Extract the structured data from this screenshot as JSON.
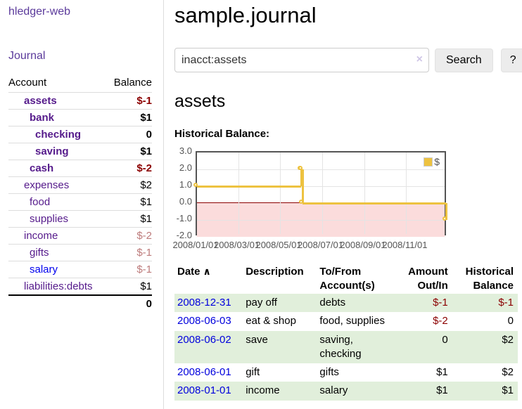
{
  "app": {
    "brand": "hledger-web"
  },
  "nav": {
    "journal": "Journal"
  },
  "colors": {
    "accent_purple": "#551a8b",
    "link_blue": "#0000ee",
    "negative_strong": "#8b0000",
    "negative_soft": "#bd7b7b",
    "row_green": "#e1efdb",
    "chart_line": "#edc240",
    "chart_negative_fill": "#fbdcdc",
    "chart_zero_line": "#8b0000"
  },
  "sidebar": {
    "account_header": "Account",
    "balance_header": "Balance",
    "accounts": [
      {
        "name": "assets",
        "balance": "$-1",
        "depth": 1,
        "emph": true,
        "neg": "strong"
      },
      {
        "name": "bank",
        "balance": "$1",
        "depth": 2,
        "emph": true
      },
      {
        "name": "checking",
        "balance": "0",
        "depth": 3,
        "emph": true
      },
      {
        "name": "saving",
        "balance": "$1",
        "depth": 3,
        "emph": true
      },
      {
        "name": "cash",
        "balance": "$-2",
        "depth": 2,
        "emph": true,
        "neg": "strong"
      },
      {
        "name": "expenses",
        "balance": "$2",
        "depth": 1
      },
      {
        "name": "food",
        "balance": "$1",
        "depth": 2
      },
      {
        "name": "supplies",
        "balance": "$1",
        "depth": 2
      },
      {
        "name": "income",
        "balance": "$-2",
        "depth": 1,
        "neg": "soft"
      },
      {
        "name": "gifts",
        "balance": "$-1",
        "depth": 2,
        "neg": "soft"
      },
      {
        "name": "salary",
        "balance": "$-1",
        "depth": 2,
        "neg": "soft",
        "blue": true
      },
      {
        "name": "liabilities:debts",
        "balance": "$1",
        "depth": 1,
        "last": true
      }
    ],
    "total": "0"
  },
  "main": {
    "title": "sample.journal",
    "search": {
      "value": "inacct:assets",
      "clear": "×",
      "button": "Search",
      "help": "?"
    },
    "heading": "assets",
    "chart_label": "Historical Balance:"
  },
  "chart_data": {
    "type": "line",
    "style": "step",
    "title": "Historical Balance",
    "series": [
      {
        "name": "$",
        "color": "#edc240",
        "points": [
          [
            "2008-01-01",
            1
          ],
          [
            "2008-06-01",
            2
          ],
          [
            "2008-06-02",
            2
          ],
          [
            "2008-06-03",
            0
          ],
          [
            "2008-12-31",
            -1
          ]
        ]
      }
    ],
    "x_start": "2008-01-01",
    "x_end": "2008-12-31",
    "x_ticks": [
      {
        "date": "2008-01-01",
        "label": "2008/01/01"
      },
      {
        "date": "2008-03-01",
        "label": "2008/03/01"
      },
      {
        "date": "2008-05-01",
        "label": "2008/05/01"
      },
      {
        "date": "2008-07-01",
        "label": "2008/07/01"
      },
      {
        "date": "2008-09-01",
        "label": "2008/09/01"
      },
      {
        "date": "2008-11-01",
        "label": "2008/11/01"
      }
    ],
    "y_ticks": [
      {
        "value": 3,
        "label": "3.0"
      },
      {
        "value": 2,
        "label": "2.0"
      },
      {
        "value": 1,
        "label": "1.0"
      },
      {
        "value": 0,
        "label": "0.0"
      },
      {
        "value": -1,
        "label": "-1.0"
      },
      {
        "value": -2,
        "label": "-2.0"
      }
    ],
    "ylim": [
      -2,
      3
    ],
    "grid": true,
    "legend_label": "$",
    "legend_position": "top-right",
    "negative_region": true
  },
  "register": {
    "sort_icon": "∧",
    "headers": [
      {
        "l1": "Date",
        "sortable": true
      },
      {
        "l1": "Description"
      },
      {
        "l1": "To/From",
        "l2": "Account(s)"
      },
      {
        "l1": "Amount",
        "l2": "Out/In",
        "num": true
      },
      {
        "l1": "Historical",
        "l2": "Balance",
        "num": true
      }
    ],
    "rows": [
      {
        "date": "2008-12-31",
        "description": "pay off",
        "accounts": "debts",
        "amount": "$-1",
        "amount_negative": true,
        "balance": "$-1",
        "balance_negative": true
      },
      {
        "date": "2008-06-03",
        "description": "eat & shop",
        "accounts": "food, supplies",
        "amount": "$-2",
        "amount_negative": true,
        "balance": "0"
      },
      {
        "date": "2008-06-02",
        "description": "save",
        "accounts": "saving, checking",
        "amount": "0",
        "balance": "$2"
      },
      {
        "date": "2008-06-01",
        "description": "gift",
        "accounts": "gifts",
        "amount": "$1",
        "balance": "$2"
      },
      {
        "date": "2008-01-01",
        "description": "income",
        "accounts": "salary",
        "amount": "$1",
        "balance": "$1"
      }
    ]
  }
}
